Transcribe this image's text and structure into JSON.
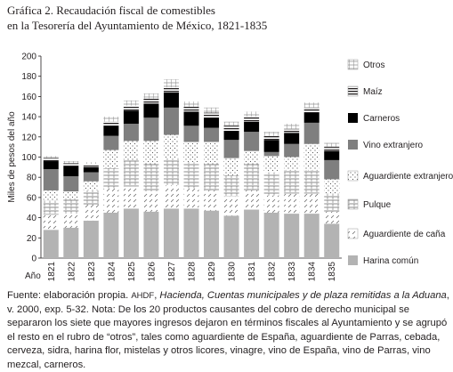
{
  "title": {
    "line1": "Gráfica 2. Recaudación fiscal de comestibles",
    "line2": "en la Tesorería del Ayuntamiento de México, 1821-1835"
  },
  "chart_data": {
    "type": "bar",
    "stacked": true,
    "ylabel": "Miles de pesos del año",
    "xlabel": "Año",
    "ylim": [
      0,
      200
    ],
    "yticks": [
      0,
      20,
      40,
      60,
      80,
      100,
      120,
      140,
      160,
      180,
      200
    ],
    "categories": [
      "1821",
      "1822",
      "1823",
      "1824",
      "1825",
      "1826",
      "1827",
      "1828",
      "1829",
      "1830",
      "1831",
      "1832",
      "1833",
      "1834",
      "1835"
    ],
    "series": [
      {
        "name": "Harina común",
        "color": "#b3b3b3",
        "values": [
          28,
          30,
          37,
          45,
          49,
          46,
          49,
          49,
          47,
          42,
          48,
          45,
          44,
          44,
          34
        ]
      },
      {
        "name": "Aguardiente de caña",
        "pattern": "diag-dash",
        "values": [
          15,
          14,
          16,
          24,
          22,
          20,
          23,
          20,
          20,
          19,
          19,
          17,
          20,
          20,
          12
        ]
      },
      {
        "name": "Pulque",
        "pattern": "bricks",
        "values": [
          14,
          14,
          14,
          20,
          26,
          27,
          27,
          26,
          26,
          21,
          26,
          23,
          23,
          23,
          18
        ]
      },
      {
        "name": "Aguardiente extranjero",
        "pattern": "dots",
        "values": [
          10,
          8,
          9,
          18,
          19,
          23,
          23,
          20,
          22,
          17,
          13,
          16,
          13,
          26,
          14
        ]
      },
      {
        "name": "Vino extranjero",
        "color": "#7f7f7f",
        "values": [
          21,
          15,
          9,
          14,
          17,
          23,
          27,
          16,
          14,
          18,
          19,
          4,
          13,
          21,
          19
        ]
      },
      {
        "name": "Carneros",
        "color": "#000000",
        "values": [
          8,
          10,
          5,
          10,
          13,
          14,
          15,
          14,
          10,
          9,
          10,
          12,
          11,
          10,
          9
        ]
      },
      {
        "name": "Maíz",
        "pattern": "bars",
        "values": [
          3,
          3,
          3,
          4,
          5,
          5,
          5,
          5,
          5,
          5,
          5,
          4,
          4,
          5,
          4
        ]
      },
      {
        "name": "Otros",
        "pattern": "grid",
        "values": [
          2,
          2,
          2,
          5,
          5,
          5,
          8,
          5,
          5,
          4,
          5,
          4,
          5,
          5,
          4
        ]
      }
    ]
  },
  "source": {
    "prefix": "Fuente: elaboración propia. ",
    "archive": "AHDF",
    "sep": ", ",
    "work": "Hacienda, Cuentas municipales y de plaza remitidas a la Aduana",
    "rest": ", v. 2000, exp. 5-32. Nota: De los 20 productos causantes del cobro de derecho municipal se separaron los siete que mayores ingresos dejaron en términos fiscales al Ayuntamiento y se agrupó el resto en el rubro de “otros”, tales como aguardiente de España, aguardiente de Parras, cebada, cerveza, sidra, harina flor, mistelas y otros licores, vinagre, vino de España, vino de Parras, vino mezcal, carneros."
  }
}
